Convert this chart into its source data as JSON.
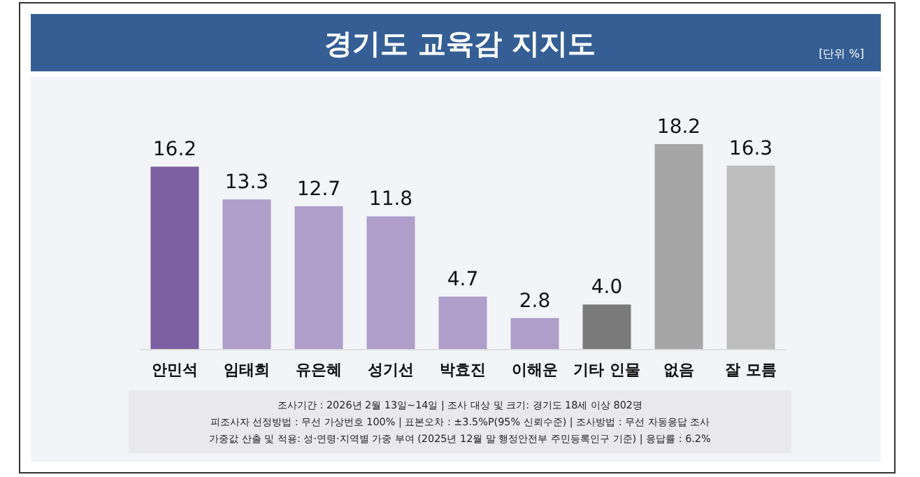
{
  "chart_data": {
    "type": "bar",
    "title": "경기도 교육감 지지도",
    "subtitle": "[단위 %]",
    "categories": [
      "안민석",
      "임태희",
      "유은혜",
      "성기선",
      "박효진",
      "이해운",
      "기타 인물",
      "없음",
      "잘 모름"
    ],
    "values": [
      16.2,
      13.3,
      12.7,
      11.8,
      4.7,
      2.8,
      4.0,
      18.2,
      16.3
    ],
    "colors": [
      "#7b5fa0",
      "#ae9ec9",
      "#ae9ec9",
      "#ae9ec9",
      "#ae9ec9",
      "#ae9ec9",
      "#7a7a7a",
      "#a6a6a6",
      "#bdbdbd"
    ],
    "value_labels": [
      "16.2",
      "13.3",
      "12.7",
      "11.8",
      "4.7",
      "2.8",
      "4.0",
      "18.2",
      "16.3"
    ],
    "annotations": [
      "조사기간 : 2026년 2월 13일~14일 | 조사 대상 및 크기: 경기도 18세 이상 802명",
      "피조사자 선정방법 : 무선 가상번호 100% | 표본오차 : ±3.5%P(95% 신뢰수준) | 조사방법 : 무선 자동응답 조사",
      "가중값 산출 및 적용: 성·연령·지역별 가중 부여 (2025년 12월 말 행정안전부 주민등록인구 기준) | 응답률 : 6.2%"
    ]
  }
}
